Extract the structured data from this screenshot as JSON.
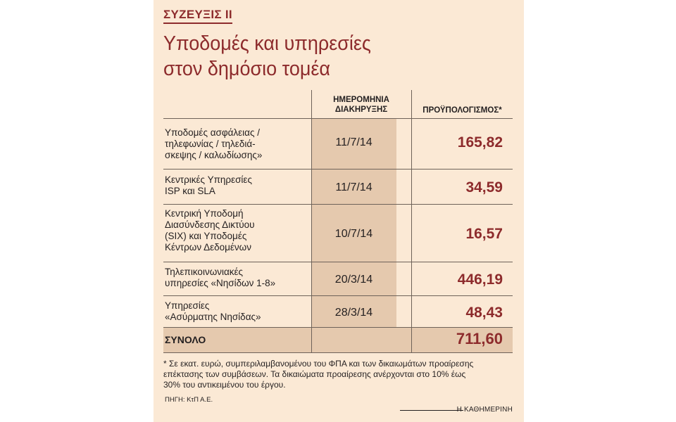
{
  "kicker": "ΣΥΖΕΥΞΙΣ ΙΙ",
  "title_lines": [
    "Υποδομές και υπηρεσίες",
    "στον δημόσιο τομέα"
  ],
  "table": {
    "headers": {
      "date": [
        "ΗΜΕΡΟΜΗΝΙΑ",
        "ΔΙΑΚΗΡΥΞΗΣ"
      ],
      "budget": "ΠΡΟΫΠΟΛΟΓΙΣΜΟΣ*"
    },
    "rows": [
      {
        "label_lines": [
          "Υποδομές ασφάλειας /",
          "τηλεφωνίας / τηλεδιά-",
          "σκεψης / καλωδίωσης»"
        ],
        "date": "11/7/14",
        "budget": "165,82"
      },
      {
        "label_lines": [
          "Κεντρικές Υπηρεσίες",
          "ISP και SLA"
        ],
        "date": "11/7/14",
        "budget": "34,59"
      },
      {
        "label_lines": [
          "Κεντρική Υποδομή",
          "Διασύνδεσης Δικτύου",
          "(SIX) και Υποδομές",
          "Κέντρων Δεδομένων"
        ],
        "date": "10/7/14",
        "budget": "16,57"
      },
      {
        "label_lines": [
          "Τηλεπικοινωνιακές",
          "υπηρεσίες «Νησίδων 1-8»"
        ],
        "date": "20/3/14",
        "budget": "446,19"
      },
      {
        "label_lines": [
          "Υπηρεσίες",
          "«Ασύρματης Νησίδας»"
        ],
        "date": "28/3/14",
        "budget": "48,43"
      }
    ],
    "total": {
      "label": "ΣΥΝΟΛΟ",
      "budget": "711,60"
    }
  },
  "footnote_lines": [
    "* Σε εκατ. ευρώ, συμπεριλαμβανομένου του ΦΠΑ και των δικαιωμάτων προαίρεσης",
    "επέκτασης των συμβάσεων. Τα δικαιώματα προαίρεσης ανέρχονται στο 10% έως",
    "30% του αντικειμένου του έργου."
  ],
  "source": "ΠΗΓΗ: ΚτΠ Α.Ε.",
  "credit": "Η ΚΑΘΗΜΕΡΙΝΗ",
  "colors": {
    "panel": "#fbe9d5",
    "accent": "#8d2b2c",
    "shade": "#e5c9ae"
  }
}
